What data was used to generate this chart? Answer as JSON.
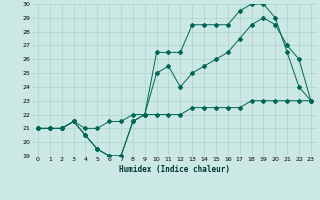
{
  "title": "",
  "xlabel": "Humidex (Indice chaleur)",
  "bg_color": "#cce8e4",
  "grid_color": "#aad4cc",
  "line_color": "#006655",
  "x_min": 0,
  "x_max": 23,
  "y_min": 19,
  "y_max": 30,
  "series": [
    {
      "x": [
        0,
        1,
        2,
        3,
        4,
        5,
        6,
        7,
        8,
        9,
        10,
        11,
        12,
        13,
        14,
        15,
        16,
        17,
        18,
        19,
        20,
        21,
        22,
        23
      ],
      "y": [
        21,
        21,
        21,
        21.5,
        20.5,
        19.5,
        19,
        19,
        21.5,
        22,
        26.5,
        26.5,
        26.5,
        28.5,
        28.5,
        28.5,
        28.5,
        29.5,
        30,
        30,
        29,
        26.5,
        24,
        23
      ]
    },
    {
      "x": [
        0,
        1,
        2,
        3,
        4,
        5,
        6,
        7,
        8,
        9,
        10,
        11,
        12,
        13,
        14,
        15,
        16,
        17,
        18,
        19,
        20,
        21,
        22,
        23
      ],
      "y": [
        21,
        21,
        21,
        21.5,
        20.5,
        19.5,
        19,
        19,
        21.5,
        22,
        25,
        25.5,
        24,
        25,
        25.5,
        26,
        26.5,
        27.5,
        28.5,
        29,
        28.5,
        27,
        26,
        23
      ]
    },
    {
      "x": [
        0,
        1,
        2,
        3,
        4,
        5,
        6,
        7,
        8,
        9,
        10,
        11,
        12,
        13,
        14,
        15,
        16,
        17,
        18,
        19,
        20,
        21,
        22,
        23
      ],
      "y": [
        21,
        21,
        21,
        21.5,
        21,
        21,
        21.5,
        21.5,
        22,
        22,
        22,
        22,
        22,
        22.5,
        22.5,
        22.5,
        22.5,
        22.5,
        23,
        23,
        23,
        23,
        23,
        23
      ]
    }
  ]
}
